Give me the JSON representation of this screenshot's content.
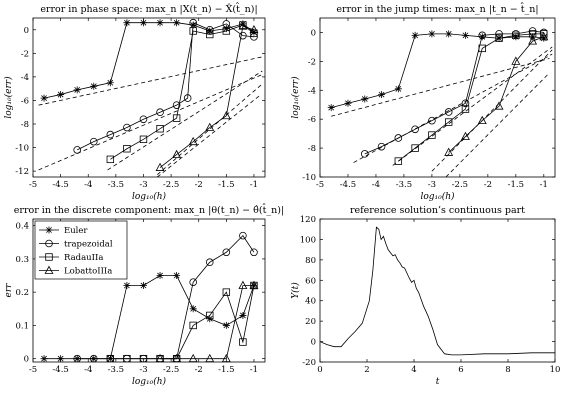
{
  "chart_data": [
    {
      "type": "line",
      "title": "error in phase space: max_n |X(t_n) − X̂(t̂_n)|",
      "xlabel": "log₁₀(h)",
      "ylabel": "log₁₀(err)",
      "xlim": [
        -5,
        -0.8
      ],
      "ylim": [
        -12.5,
        1
      ],
      "xticks": [
        -5,
        -4.5,
        -4,
        -3.5,
        -3,
        -2.5,
        -2,
        -1.5,
        -1
      ],
      "yticks": [
        -12,
        -10,
        -8,
        -6,
        -4,
        -2,
        0
      ],
      "series": [
        {
          "name": "Euler",
          "marker": "star",
          "x": [
            -4.8,
            -4.5,
            -4.2,
            -3.9,
            -3.6,
            -3.3,
            -3.0,
            -2.7,
            -2.4,
            -2.1,
            -1.8,
            -1.5,
            -1.2,
            -1.0
          ],
          "y": [
            -5.8,
            -5.5,
            -5.1,
            -4.8,
            -4.5,
            0.6,
            0.6,
            0.6,
            0.6,
            0.4,
            -0.1,
            0.1,
            0.5,
            -0.2
          ]
        },
        {
          "name": "trapezoidal",
          "marker": "circle",
          "x": [
            -4.2,
            -3.9,
            -3.6,
            -3.3,
            -3.0,
            -2.7,
            -2.4,
            -2.2,
            -2.1,
            -1.8,
            -1.5,
            -1.2,
            -1.0
          ],
          "y": [
            -10.2,
            -9.5,
            -8.9,
            -8.3,
            -7.6,
            -7.0,
            -6.4,
            -5.8,
            0.6,
            0.0,
            0.5,
            -0.5,
            -0.6
          ]
        },
        {
          "name": "RadauIIa",
          "marker": "square",
          "x": [
            -3.6,
            -3.3,
            -3.0,
            -2.7,
            -2.4,
            -2.1,
            -1.8,
            -1.5,
            -1.2,
            -1.0
          ],
          "y": [
            -11.0,
            -10.1,
            -9.3,
            -8.4,
            -7.5,
            -0.1,
            -0.4,
            -0.1,
            0.4,
            -0.3
          ]
        },
        {
          "name": "LobattoIIIa",
          "marker": "triangle",
          "x": [
            -2.7,
            -2.4,
            -2.1,
            -1.8,
            -1.5,
            -1.2,
            -1.0
          ],
          "y": [
            -11.7,
            -10.6,
            -9.5,
            -8.3,
            -7.3,
            0.3,
            0.0
          ]
        }
      ],
      "reference_lines": [
        {
          "x": [
            -4.9,
            -0.85
          ],
          "y": [
            -6.4,
            -2.3
          ]
        },
        {
          "x": [
            -4.9,
            -0.85
          ],
          "y": [
            -11.9,
            -3.8
          ]
        },
        {
          "x": [
            -3.65,
            -0.85
          ],
          "y": [
            -11.9,
            -3.5
          ]
        },
        {
          "x": [
            -2.75,
            -0.85
          ],
          "y": [
            -12.3,
            -4.6
          ]
        },
        {
          "x": [
            -2.75,
            -0.9
          ],
          "y": [
            -12.5,
            -5.6
          ]
        }
      ]
    },
    {
      "type": "line",
      "title": "error in the jump times: max_n |t_n − t̂_n|",
      "xlabel": "log₁₀(h)",
      "ylabel": "log₁₀(err)",
      "xlim": [
        -5,
        -0.8
      ],
      "ylim": [
        -10,
        1
      ],
      "xticks": [
        -5,
        -4.5,
        -4,
        -3.5,
        -3,
        -2.5,
        -2,
        -1.5,
        -1
      ],
      "yticks": [
        -10,
        -8,
        -6,
        -4,
        -2,
        0
      ],
      "series": [
        {
          "name": "Euler",
          "marker": "star",
          "x": [
            -4.8,
            -4.5,
            -4.2,
            -3.9,
            -3.6,
            -3.3,
            -3.0,
            -2.7,
            -2.4,
            -2.1,
            -1.8,
            -1.5,
            -1.2,
            -1.0
          ],
          "y": [
            -5.2,
            -4.9,
            -4.6,
            -4.3,
            -3.9,
            -0.2,
            -0.1,
            -0.1,
            -0.2,
            -0.3,
            -0.4,
            -0.3,
            -0.3,
            -0.4
          ]
        },
        {
          "name": "trapezoidal",
          "marker": "circle",
          "x": [
            -4.2,
            -3.9,
            -3.6,
            -3.3,
            -3.0,
            -2.7,
            -2.4,
            -2.1,
            -1.8,
            -1.5,
            -1.2,
            -1.0
          ],
          "y": [
            -8.4,
            -7.9,
            -7.3,
            -6.7,
            -6.1,
            -5.5,
            -4.9,
            -0.2,
            -0.1,
            -0.1,
            0.1,
            0.0
          ]
        },
        {
          "name": "RadauIIa",
          "marker": "square",
          "x": [
            -3.6,
            -3.3,
            -3.0,
            -2.7,
            -2.4,
            -2.1,
            -1.8,
            -1.5,
            -1.2,
            -1.0
          ],
          "y": [
            -8.9,
            -8.0,
            -7.1,
            -6.2,
            -5.3,
            -1.1,
            -0.4,
            -0.2,
            -0.1,
            -0.1
          ]
        },
        {
          "name": "LobattoIIIa",
          "marker": "triangle",
          "x": [
            -2.7,
            -2.4,
            -2.1,
            -1.8,
            -1.5,
            -1.2,
            -1.0
          ],
          "y": [
            -8.3,
            -7.2,
            -6.1,
            -5.1,
            -2.0,
            -0.6,
            -0.3
          ]
        }
      ],
      "reference_lines": [
        {
          "x": [
            -4.8,
            -0.9
          ],
          "y": [
            -5.8,
            -1.8
          ]
        },
        {
          "x": [
            -4.4,
            -0.85
          ],
          "y": [
            -9.0,
            -1.5
          ]
        },
        {
          "x": [
            -3.7,
            -0.85
          ],
          "y": [
            -9.2,
            -1.0
          ]
        },
        {
          "x": [
            -3.0,
            -0.85
          ],
          "y": [
            -9.6,
            -1.2
          ]
        },
        {
          "x": [
            -2.75,
            -0.9
          ],
          "y": [
            -10.0,
            -2.8
          ]
        }
      ]
    },
    {
      "type": "line",
      "title": "error in the discrete component: max_n |θ(t_n) − θ̂(t̂_n)|",
      "xlabel": "log₁₀(h)",
      "ylabel": "err",
      "xlim": [
        -5,
        -0.8
      ],
      "ylim": [
        -0.01,
        0.42
      ],
      "xticks": [
        -5,
        -4.5,
        -4,
        -3.5,
        -3,
        -2.5,
        -2,
        -1.5,
        -1
      ],
      "yticks": [
        0,
        0.1,
        0.2,
        0.3,
        0.4
      ],
      "legend": {
        "position": "top-left",
        "entries": [
          "Euler",
          "trapezoidal",
          "RadauIIa",
          "LobattoIIIa"
        ]
      },
      "series": [
        {
          "name": "Euler",
          "marker": "star",
          "x": [
            -4.8,
            -4.5,
            -4.2,
            -3.9,
            -3.6,
            -3.3,
            -3.0,
            -2.7,
            -2.4,
            -2.1,
            -1.8,
            -1.5,
            -1.2,
            -1.0
          ],
          "y": [
            0,
            0,
            0,
            0,
            0,
            0.22,
            0.22,
            0.25,
            0.25,
            0.15,
            0.12,
            0.1,
            0.13,
            0.22
          ]
        },
        {
          "name": "trapezoidal",
          "marker": "circle",
          "x": [
            -4.2,
            -3.9,
            -3.6,
            -3.3,
            -3.0,
            -2.7,
            -2.4,
            -2.1,
            -1.8,
            -1.5,
            -1.2,
            -1.0
          ],
          "y": [
            0,
            0,
            0,
            0,
            0,
            0,
            0,
            0.23,
            0.29,
            0.32,
            0.37,
            0.32
          ]
        },
        {
          "name": "RadauIIa",
          "marker": "square",
          "x": [
            -3.6,
            -3.3,
            -3.0,
            -2.7,
            -2.4,
            -2.1,
            -1.8,
            -1.5,
            -1.2,
            -1.0
          ],
          "y": [
            0,
            0,
            0,
            0,
            0,
            0.1,
            0.13,
            0.2,
            0.05,
            0.22
          ]
        },
        {
          "name": "LobattoIIIa",
          "marker": "triangle",
          "x": [
            -2.7,
            -2.4,
            -2.1,
            -1.8,
            -1.5,
            -1.2,
            -1.0
          ],
          "y": [
            0,
            0,
            0,
            0,
            0,
            0.22,
            0.22
          ]
        }
      ]
    },
    {
      "type": "line",
      "title": "reference solution’s continuous part",
      "xlabel": "t",
      "ylabel": "Y(t)",
      "xlim": [
        0,
        10
      ],
      "ylim": [
        -20,
        120
      ],
      "xticks": [
        0,
        2,
        4,
        6,
        8,
        10
      ],
      "yticks": [
        -20,
        0,
        20,
        40,
        60,
        80,
        100,
        120
      ],
      "series": [
        {
          "x": [
            0,
            0.3,
            0.6,
            0.9,
            1.2,
            1.5,
            1.8,
            2.1,
            2.25,
            2.4,
            2.5,
            2.6,
            2.7,
            2.8,
            2.9,
            3.0,
            3.1,
            3.2,
            3.3,
            3.4,
            3.5,
            3.6,
            3.7,
            3.8,
            3.9,
            4.0,
            4.1,
            4.2,
            4.4,
            4.6,
            4.8,
            5.0,
            5.3,
            5.6,
            6,
            7,
            8,
            9,
            10
          ],
          "y": [
            0,
            -3,
            -5,
            -5,
            3,
            10,
            18,
            40,
            70,
            112,
            110,
            100,
            103,
            96,
            90,
            87,
            84,
            85,
            80,
            77,
            73,
            72,
            67,
            62,
            58,
            60,
            52,
            48,
            35,
            25,
            12,
            -3,
            -12,
            -13,
            -13,
            -12,
            -12,
            -11,
            -11
          ]
        }
      ]
    }
  ]
}
